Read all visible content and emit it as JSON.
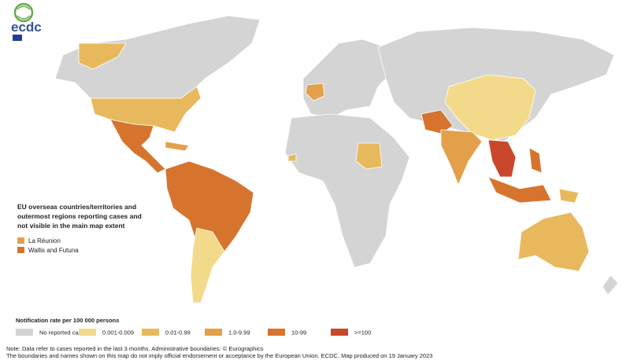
{
  "logo": {
    "text": "ecdc"
  },
  "overseas_legend": {
    "title": "EU overseas countries/territories and outermost regions reporting cases and not visible in the main map extent",
    "items": [
      {
        "label": "La Réunion",
        "color": "#e3a04a"
      },
      {
        "label": "Wallis and Futuna",
        "color": "#d6742e"
      }
    ]
  },
  "rate_legend": {
    "title": "Notification rate per 100 000 persons",
    "items": [
      {
        "label": "No reported cases",
        "color": "#d4d4d4"
      },
      {
        "label": "0.001-0.009",
        "color": "#f3da8a"
      },
      {
        "label": "0.01-0.99",
        "color": "#e8b95c"
      },
      {
        "label": "1.0-9.99",
        "color": "#e3a04a"
      },
      {
        "label": "10-99",
        "color": "#d6742e"
      },
      {
        "label": ">=100",
        "color": "#c9472a"
      }
    ]
  },
  "notes": [
    "Note: Data refer to cases reported in the last 3 months. Administrative boundaries: © Eurographics",
    "The boundaries and names shown on this map do not imply official endorsement or acceptance by the European Union. ECDC. Map produced on 19 January 2023"
  ]
}
